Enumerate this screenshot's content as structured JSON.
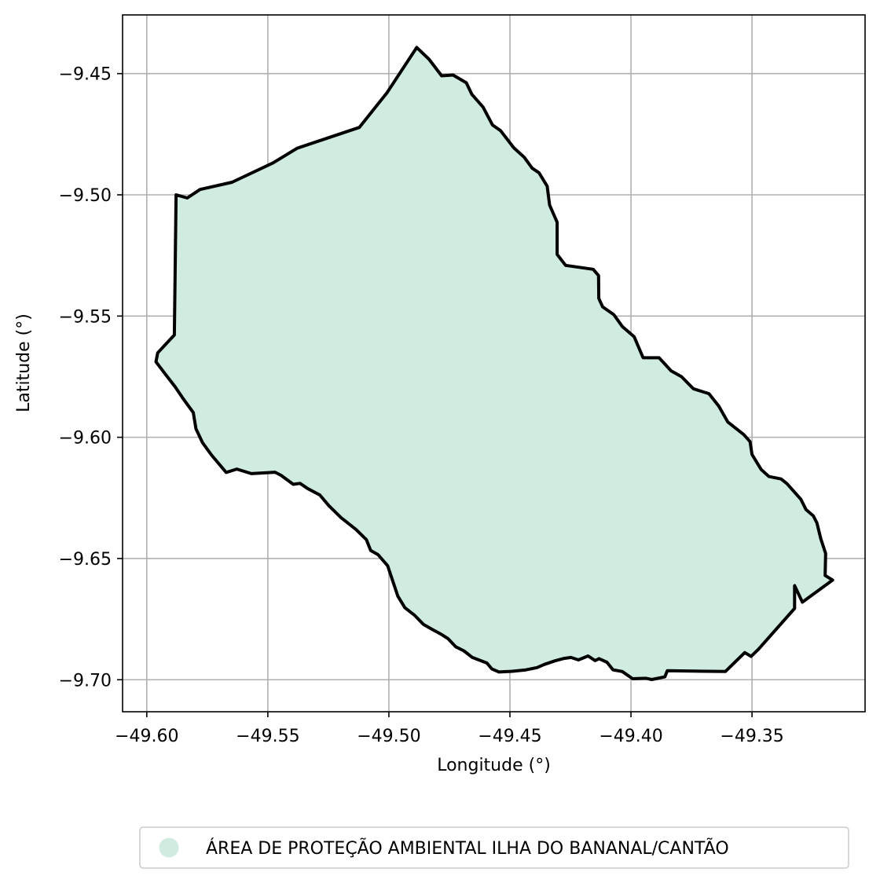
{
  "chart_data": {
    "type": "map",
    "xlabel": "Longitude (°)",
    "ylabel": "Latitude (°)",
    "xlim": [
      -49.61,
      -49.3033
    ],
    "ylim": [
      -9.7132,
      -9.4258
    ],
    "x_ticks": [
      -49.6,
      -49.55,
      -49.5,
      -49.45,
      -49.4,
      -49.35
    ],
    "x_tick_labels": [
      "−49.60",
      "−49.55",
      "−49.50",
      "−49.45",
      "−49.40",
      "−49.35"
    ],
    "y_ticks": [
      -9.45,
      -9.5,
      -9.55,
      -9.6,
      -9.65,
      -9.7
    ],
    "y_tick_labels": [
      "−9.45",
      "−9.50",
      "−9.55",
      "−9.60",
      "−9.65",
      "−9.70"
    ],
    "grid": true,
    "legend_position": "bottom",
    "series": [
      {
        "name": "ÁREA DE PROTEÇÃO AMBIENTAL ILHA DO BANANAL/CANTÃO",
        "fill_color": "#d0ebdf",
        "edge_color": "#000000",
        "polygon": [
          [
            -49.4885,
            -9.4392
          ],
          [
            -49.4834,
            -9.4441
          ],
          [
            -49.4782,
            -9.4509
          ],
          [
            -49.4735,
            -9.4506
          ],
          [
            -49.468,
            -9.4538
          ],
          [
            -49.4657,
            -9.4586
          ],
          [
            -49.4611,
            -9.4638
          ],
          [
            -49.4572,
            -9.4712
          ],
          [
            -49.4539,
            -9.4735
          ],
          [
            -49.4484,
            -9.4806
          ],
          [
            -49.4441,
            -9.4845
          ],
          [
            -49.4408,
            -9.489
          ],
          [
            -49.438,
            -9.4909
          ],
          [
            -49.4346,
            -9.4964
          ],
          [
            -49.4336,
            -9.5042
          ],
          [
            -49.4305,
            -9.5113
          ],
          [
            -49.4305,
            -9.5246
          ],
          [
            -49.427,
            -9.5291
          ],
          [
            -49.4156,
            -9.5307
          ],
          [
            -49.4134,
            -9.5333
          ],
          [
            -49.4133,
            -9.5427
          ],
          [
            -49.4117,
            -9.5462
          ],
          [
            -49.4071,
            -9.5494
          ],
          [
            -49.4036,
            -9.5543
          ],
          [
            -49.3987,
            -9.5585
          ],
          [
            -49.395,
            -9.5672
          ],
          [
            -49.3884,
            -9.5672
          ],
          [
            -49.3834,
            -9.5726
          ],
          [
            -49.3791,
            -9.575
          ],
          [
            -49.3742,
            -9.58
          ],
          [
            -49.3678,
            -9.582
          ],
          [
            -49.3637,
            -9.5872
          ],
          [
            -49.36,
            -9.5937
          ],
          [
            -49.3534,
            -9.5989
          ],
          [
            -49.3508,
            -9.6018
          ],
          [
            -49.35,
            -9.6071
          ],
          [
            -49.3462,
            -9.6133
          ],
          [
            -49.343,
            -9.6162
          ],
          [
            -49.338,
            -9.6172
          ],
          [
            -49.3356,
            -9.6191
          ],
          [
            -49.3298,
            -9.6256
          ],
          [
            -49.3277,
            -9.6298
          ],
          [
            -49.3247,
            -9.6324
          ],
          [
            -49.3232,
            -9.6353
          ],
          [
            -49.3216,
            -9.6418
          ],
          [
            -49.3196,
            -9.6479
          ],
          [
            -49.3198,
            -9.657
          ],
          [
            -49.3167,
            -9.6589
          ],
          [
            -49.3292,
            -9.668
          ],
          [
            -49.3324,
            -9.6612
          ],
          [
            -49.3324,
            -9.6706
          ],
          [
            -49.3474,
            -9.6875
          ],
          [
            -49.3504,
            -9.6904
          ],
          [
            -49.353,
            -9.6888
          ],
          [
            -49.361,
            -9.6966
          ],
          [
            -49.385,
            -9.6963
          ],
          [
            -49.386,
            -9.6988
          ],
          [
            -49.3914,
            -9.6999
          ],
          [
            -49.3938,
            -9.6994
          ],
          [
            -49.3993,
            -9.6996
          ],
          [
            -49.4036,
            -9.6966
          ],
          [
            -49.4074,
            -9.6959
          ],
          [
            -49.4099,
            -9.6928
          ],
          [
            -49.4132,
            -9.6913
          ],
          [
            -49.4148,
            -9.6921
          ],
          [
            -49.4177,
            -9.6902
          ],
          [
            -49.4217,
            -9.6918
          ],
          [
            -49.4248,
            -9.6908
          ],
          [
            -49.4276,
            -9.6912
          ],
          [
            -49.4314,
            -9.6922
          ],
          [
            -49.4358,
            -9.6937
          ],
          [
            -49.4388,
            -9.695
          ],
          [
            -49.4438,
            -9.696
          ],
          [
            -49.449,
            -9.6965
          ],
          [
            -49.4545,
            -9.6968
          ],
          [
            -49.4575,
            -9.6955
          ],
          [
            -49.4595,
            -9.6931
          ],
          [
            -49.4655,
            -9.6908
          ],
          [
            -49.469,
            -9.6881
          ],
          [
            -49.4724,
            -9.6864
          ],
          [
            -49.4755,
            -9.6831
          ],
          [
            -49.4781,
            -9.6814
          ],
          [
            -49.482,
            -9.6793
          ],
          [
            -49.4857,
            -9.6772
          ],
          [
            -49.4895,
            -9.6733
          ],
          [
            -49.4934,
            -9.6703
          ],
          [
            -49.4963,
            -9.6655
          ],
          [
            -49.5005,
            -9.653
          ],
          [
            -49.5045,
            -9.6484
          ],
          [
            -49.5075,
            -9.6467
          ],
          [
            -49.5093,
            -9.6422
          ],
          [
            -49.5136,
            -9.638
          ],
          [
            -49.5198,
            -9.6331
          ],
          [
            -49.5248,
            -9.6282
          ],
          [
            -49.5285,
            -9.6238
          ],
          [
            -49.5336,
            -9.6211
          ],
          [
            -49.5367,
            -9.619
          ],
          [
            -49.5395,
            -9.6194
          ],
          [
            -49.5445,
            -9.6157
          ],
          [
            -49.547,
            -9.6144
          ],
          [
            -49.5568,
            -9.615
          ],
          [
            -49.5628,
            -9.6131
          ],
          [
            -49.5672,
            -9.6145
          ],
          [
            -49.5732,
            -9.6074
          ],
          [
            -49.577,
            -9.6022
          ],
          [
            -49.5797,
            -9.5965
          ],
          [
            -49.5808,
            -9.5898
          ],
          [
            -49.5851,
            -9.5839
          ],
          [
            -49.5883,
            -9.5792
          ],
          [
            -49.5923,
            -9.574
          ],
          [
            -49.5962,
            -9.5689
          ],
          [
            -49.5955,
            -9.5652
          ],
          [
            -49.5886,
            -9.5578
          ],
          [
            -49.5879,
            -9.5
          ],
          [
            -49.5833,
            -9.5013
          ],
          [
            -49.578,
            -9.4978
          ],
          [
            -49.5648,
            -9.4948
          ],
          [
            -49.5478,
            -9.4868
          ],
          [
            -49.5379,
            -9.4808
          ],
          [
            -49.5122,
            -9.4722
          ],
          [
            -49.5008,
            -9.4579
          ],
          [
            -49.4885,
            -9.4392
          ]
        ]
      }
    ]
  }
}
